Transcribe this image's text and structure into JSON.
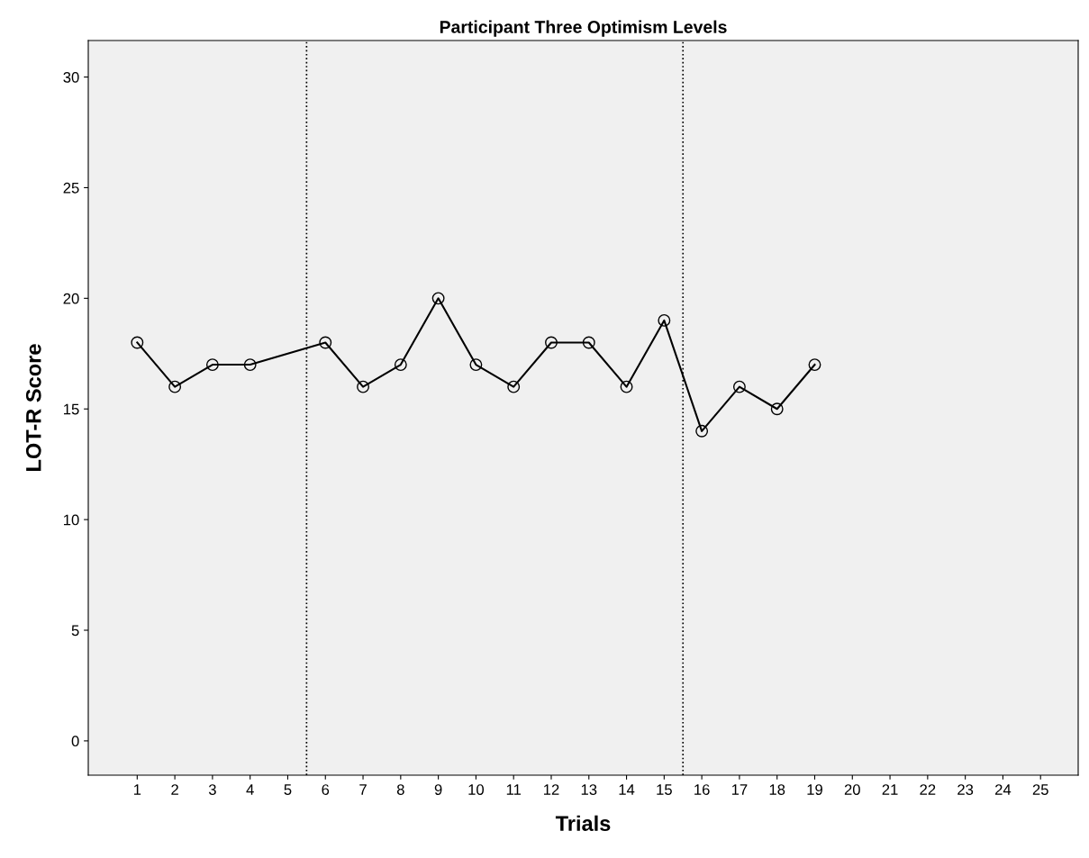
{
  "chart_data": {
    "type": "line",
    "title": "Participant Three Optimism Levels",
    "xlabel": "Trials",
    "ylabel": "LOT-R Score",
    "x": [
      1,
      2,
      3,
      4,
      5,
      6,
      7,
      8,
      9,
      10,
      11,
      12,
      13,
      14,
      15,
      16,
      17,
      18,
      19
    ],
    "series": [
      {
        "color": "#000000",
        "values": [
          18,
          16,
          17,
          17,
          null,
          18,
          16,
          17,
          20,
          17,
          16,
          18,
          18,
          16,
          19,
          14,
          16,
          15,
          17
        ]
      }
    ],
    "xlim": [
      -0.3,
      26
    ],
    "xticks": [
      1,
      2,
      3,
      4,
      5,
      6,
      7,
      8,
      9,
      10,
      11,
      12,
      13,
      14,
      15,
      16,
      17,
      18,
      19,
      20,
      21,
      22,
      23,
      24,
      25
    ],
    "ylim": [
      -1.55,
      31.65
    ],
    "yticks": [
      0,
      5,
      10,
      15,
      20,
      25,
      30
    ],
    "ref_lines": [
      {
        "axis": "x",
        "value": 5.5,
        "color": "#000000",
        "line_style": "dotted"
      },
      {
        "axis": "x",
        "value": 15.5,
        "color": "#000000",
        "line_style": "dotted"
      }
    ],
    "marker": "circle",
    "line_style": "solid",
    "grid": false,
    "legend": false
  }
}
